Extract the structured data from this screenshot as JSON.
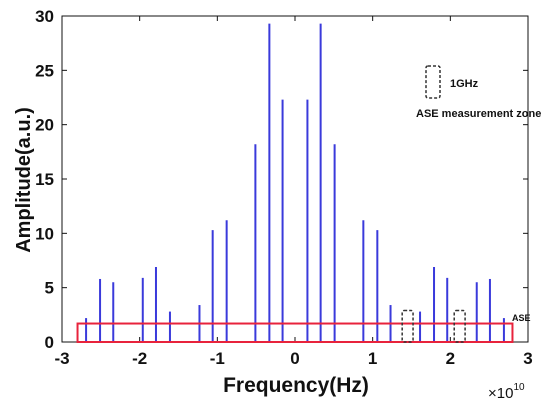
{
  "chart_data": {
    "type": "bar",
    "xlabel": "Frequency(Hz)",
    "ylabel": "Amplitude(a.u.)",
    "x_exponent_label": "×10",
    "x_exponent_power": "10",
    "xlim": [
      -3,
      3
    ],
    "ylim": [
      0,
      30
    ],
    "xticks": [
      -3,
      -2,
      -1,
      0,
      1,
      2,
      3
    ],
    "yticks": [
      0,
      5,
      10,
      15,
      20,
      25,
      30
    ],
    "grid": false,
    "series": [
      {
        "color": "#3a3adb",
        "points": [
          {
            "x": -2.69,
            "y": 2.2
          },
          {
            "x": -2.51,
            "y": 5.8
          },
          {
            "x": -2.34,
            "y": 5.5
          },
          {
            "x": -1.96,
            "y": 5.9
          },
          {
            "x": -1.79,
            "y": 6.9
          },
          {
            "x": -1.61,
            "y": 2.8
          },
          {
            "x": -1.23,
            "y": 3.4
          },
          {
            "x": -1.06,
            "y": 10.3
          },
          {
            "x": -0.88,
            "y": 11.2
          },
          {
            "x": -0.51,
            "y": 18.2
          },
          {
            "x": -0.33,
            "y": 29.3
          },
          {
            "x": -0.16,
            "y": 22.3
          },
          {
            "x": 0.16,
            "y": 22.3
          },
          {
            "x": 0.33,
            "y": 29.3
          },
          {
            "x": 0.51,
            "y": 18.2
          },
          {
            "x": 0.88,
            "y": 11.2
          },
          {
            "x": 1.06,
            "y": 10.3
          },
          {
            "x": 1.23,
            "y": 3.4
          },
          {
            "x": 1.61,
            "y": 2.8
          },
          {
            "x": 1.79,
            "y": 6.9
          },
          {
            "x": 1.96,
            "y": 5.9
          },
          {
            "x": 2.34,
            "y": 5.5
          },
          {
            "x": 2.51,
            "y": 5.8
          },
          {
            "x": 2.69,
            "y": 2.2
          }
        ]
      }
    ],
    "annotations": {
      "ase_label": "ASE",
      "ase_color": "#e8233c",
      "ase_band": {
        "x": [
          -2.8,
          2.8
        ],
        "y": [
          0,
          1.7
        ]
      },
      "zone_boxes": [
        {
          "x": [
            1.38,
            1.52
          ],
          "y": [
            0,
            2.9
          ]
        },
        {
          "x": [
            2.05,
            2.19
          ],
          "y": [
            0,
            2.9
          ]
        }
      ],
      "legend_box_label_1": "1GHz",
      "legend_box_label_2": "ASE measurement zone"
    }
  }
}
